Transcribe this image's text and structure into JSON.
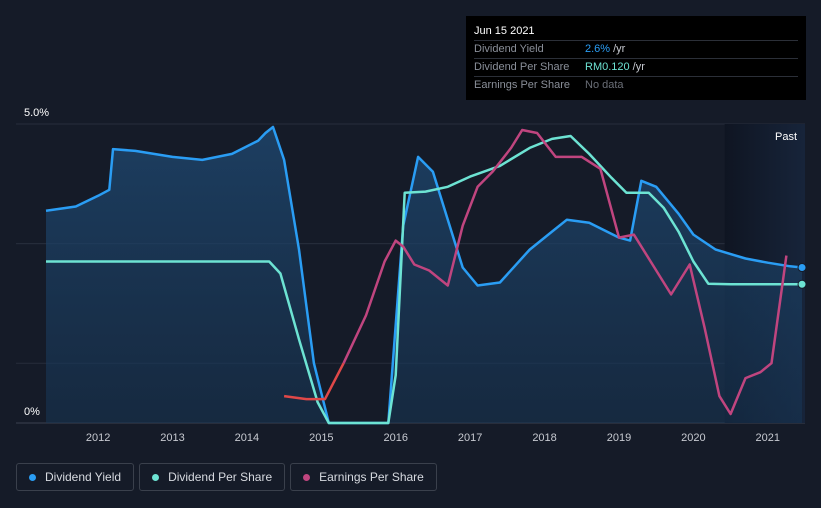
{
  "tooltip": {
    "date": "Jun 15 2021",
    "rows": [
      {
        "label": "Dividend Yield",
        "value": "2.6%",
        "unit": "/yr",
        "color": "#2a9df4"
      },
      {
        "label": "Dividend Per Share",
        "value": "RM0.120",
        "unit": "/yr",
        "color": "#6de3d3"
      },
      {
        "label": "Earnings Per Share",
        "value": "No data",
        "unit": "",
        "color": "#6b6f78"
      }
    ]
  },
  "chart_data": {
    "type": "line",
    "y_top_label": "5.0%",
    "y_bottom_label": "0%",
    "ylim": [
      0,
      5.0
    ],
    "xlim": [
      2011.3,
      2021.5
    ],
    "x_ticks": [
      "2012",
      "2013",
      "2014",
      "2015",
      "2016",
      "2017",
      "2018",
      "2019",
      "2020",
      "2021"
    ],
    "past_label": "Past",
    "past_start": 2020.42,
    "grid": true,
    "colors": {
      "dividend_yield": "#2a9df4",
      "dividend_per_share": "#6de3d3",
      "eps_positive": "#c0457f",
      "eps_negative": "#e04848"
    },
    "series": [
      {
        "name": "Dividend Yield",
        "key": "dividend_yield",
        "fill": true,
        "points": [
          [
            2011.3,
            3.55
          ],
          [
            2011.7,
            3.62
          ],
          [
            2012.0,
            3.8
          ],
          [
            2012.15,
            3.9
          ],
          [
            2012.2,
            4.58
          ],
          [
            2012.5,
            4.55
          ],
          [
            2013.0,
            4.45
          ],
          [
            2013.4,
            4.4
          ],
          [
            2013.8,
            4.5
          ],
          [
            2014.15,
            4.72
          ],
          [
            2014.25,
            4.85
          ],
          [
            2014.35,
            4.95
          ],
          [
            2014.5,
            4.4
          ],
          [
            2014.7,
            2.9
          ],
          [
            2014.9,
            1.0
          ],
          [
            2015.1,
            0.0
          ],
          [
            2015.9,
            0.0
          ],
          [
            2016.1,
            3.3
          ],
          [
            2016.3,
            4.45
          ],
          [
            2016.5,
            4.2
          ],
          [
            2016.7,
            3.4
          ],
          [
            2016.9,
            2.6
          ],
          [
            2017.1,
            2.3
          ],
          [
            2017.4,
            2.35
          ],
          [
            2017.8,
            2.9
          ],
          [
            2018.1,
            3.2
          ],
          [
            2018.3,
            3.4
          ],
          [
            2018.6,
            3.35
          ],
          [
            2019.0,
            3.1
          ],
          [
            2019.15,
            3.05
          ],
          [
            2019.3,
            4.05
          ],
          [
            2019.5,
            3.95
          ],
          [
            2019.8,
            3.5
          ],
          [
            2020.0,
            3.15
          ],
          [
            2020.3,
            2.9
          ],
          [
            2020.7,
            2.75
          ],
          [
            2021.0,
            2.68
          ],
          [
            2021.3,
            2.62
          ],
          [
            2021.46,
            2.6
          ]
        ]
      },
      {
        "name": "Dividend Per Share",
        "key": "dividend_per_share",
        "fill": false,
        "points": [
          [
            2011.3,
            2.7
          ],
          [
            2014.3,
            2.7
          ],
          [
            2014.45,
            2.5
          ],
          [
            2014.7,
            1.4
          ],
          [
            2014.95,
            0.35
          ],
          [
            2015.1,
            0.0
          ],
          [
            2015.9,
            0.0
          ],
          [
            2016.0,
            0.8
          ],
          [
            2016.12,
            3.85
          ],
          [
            2016.4,
            3.87
          ],
          [
            2016.7,
            3.95
          ],
          [
            2017.0,
            4.12
          ],
          [
            2017.4,
            4.3
          ],
          [
            2017.8,
            4.6
          ],
          [
            2018.1,
            4.75
          ],
          [
            2018.35,
            4.8
          ],
          [
            2018.6,
            4.5
          ],
          [
            2018.9,
            4.1
          ],
          [
            2019.1,
            3.85
          ],
          [
            2019.4,
            3.85
          ],
          [
            2019.6,
            3.6
          ],
          [
            2019.8,
            3.2
          ],
          [
            2020.0,
            2.7
          ],
          [
            2020.2,
            2.33
          ],
          [
            2020.5,
            2.32
          ],
          [
            2021.46,
            2.32
          ]
        ]
      },
      {
        "name": "Earnings Per Share",
        "key": "eps",
        "fill": false,
        "points": [
          [
            2014.5,
            0.45
          ],
          [
            2014.8,
            0.4
          ],
          [
            2015.05,
            0.4
          ],
          [
            2015.3,
            1.0
          ],
          [
            2015.6,
            1.8
          ],
          [
            2015.85,
            2.7
          ],
          [
            2016.0,
            3.05
          ],
          [
            2016.1,
            2.95
          ],
          [
            2016.25,
            2.65
          ],
          [
            2016.45,
            2.55
          ],
          [
            2016.7,
            2.3
          ],
          [
            2016.9,
            3.3
          ],
          [
            2017.1,
            3.95
          ],
          [
            2017.3,
            4.2
          ],
          [
            2017.55,
            4.6
          ],
          [
            2017.7,
            4.9
          ],
          [
            2017.9,
            4.85
          ],
          [
            2018.15,
            4.45
          ],
          [
            2018.5,
            4.45
          ],
          [
            2018.75,
            4.25
          ],
          [
            2019.0,
            3.1
          ],
          [
            2019.2,
            3.15
          ],
          [
            2019.45,
            2.65
          ],
          [
            2019.7,
            2.15
          ],
          [
            2019.95,
            2.65
          ],
          [
            2020.15,
            1.6
          ],
          [
            2020.35,
            0.45
          ],
          [
            2020.5,
            0.15
          ],
          [
            2020.7,
            0.75
          ],
          [
            2020.9,
            0.85
          ],
          [
            2021.05,
            1.0
          ],
          [
            2021.25,
            2.8
          ]
        ]
      }
    ],
    "end_markers": [
      {
        "series": "dividend_yield",
        "x": 2021.46,
        "y": 2.6
      },
      {
        "series": "dividend_per_share",
        "x": 2021.46,
        "y": 2.32
      }
    ]
  },
  "legend": [
    {
      "label": "Dividend Yield",
      "color": "#2a9df4"
    },
    {
      "label": "Dividend Per Share",
      "color": "#6de3d3"
    },
    {
      "label": "Earnings Per Share",
      "color": "#c0457f"
    }
  ]
}
